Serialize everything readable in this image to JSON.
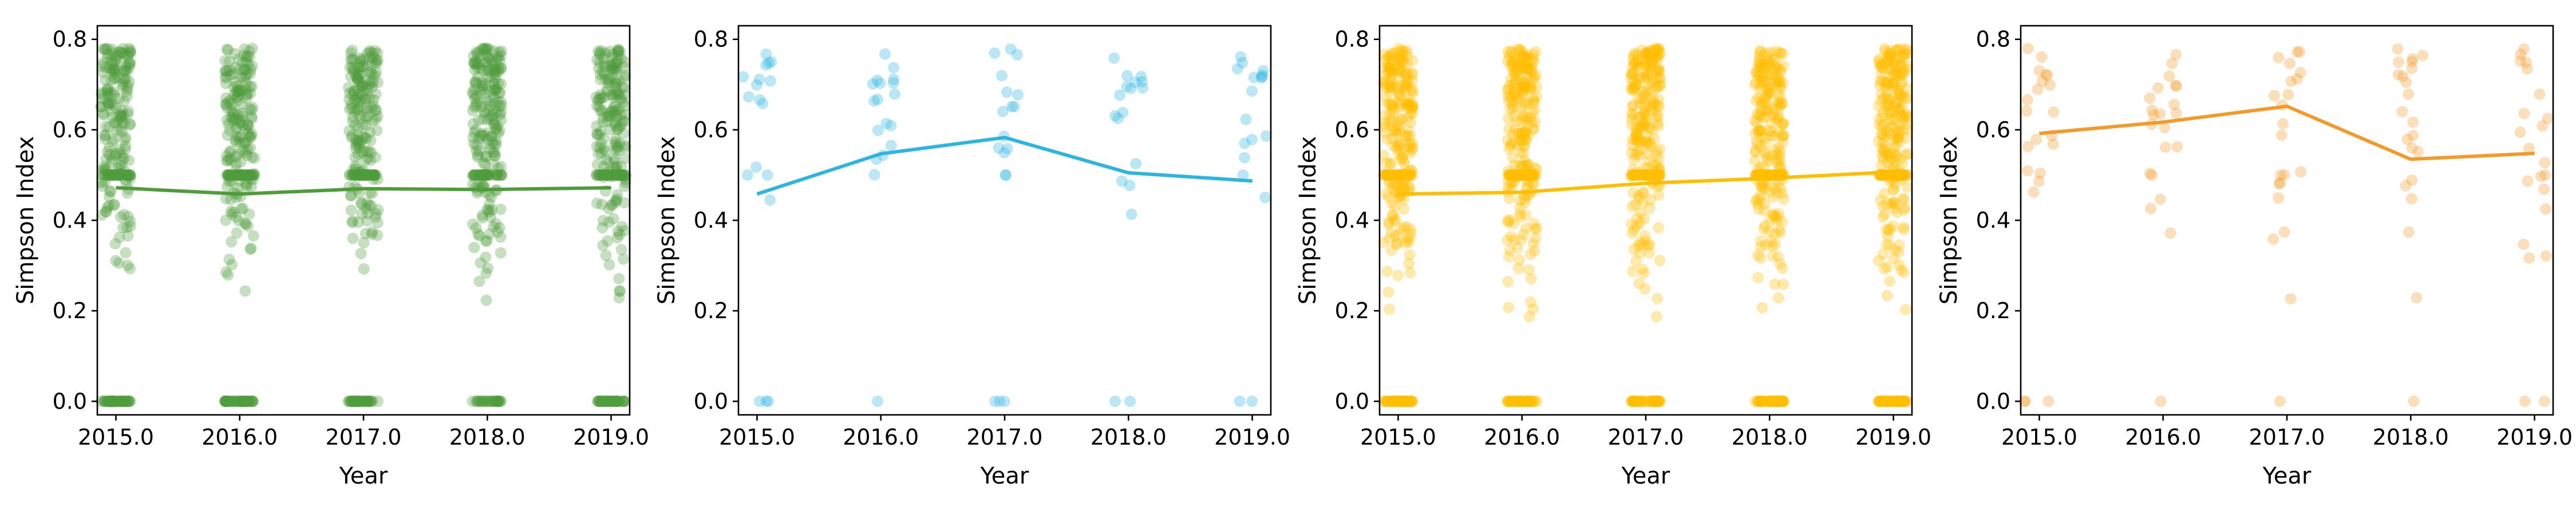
{
  "chart_data": [
    {
      "type": "scatter",
      "xlabel": "Year",
      "ylabel": "Simpson Index",
      "xticks": [
        "2015.0",
        "2016.0",
        "2017.0",
        "2018.0",
        "2019.0"
      ],
      "yticks": [
        "0.0",
        "0.2",
        "0.4",
        "0.6",
        "0.8"
      ],
      "x": [
        2015,
        2016,
        2017,
        2018,
        2019
      ],
      "xlim": [
        2014.85,
        2019.15
      ],
      "ylim": [
        -0.03,
        0.83
      ],
      "color": "#4f9d3a",
      "mean_line": [
        0.472,
        0.458,
        0.47,
        0.468,
        0.472
      ],
      "points_per_year": 260,
      "zero_fraction": 0.16,
      "half_fraction": 0.14,
      "spread": [
        0.2,
        0.78
      ]
    },
    {
      "type": "scatter",
      "xlabel": "Year",
      "ylabel": "Simpson Index",
      "xticks": [
        "2015.0",
        "2016.0",
        "2017.0",
        "2018.0",
        "2019.0"
      ],
      "yticks": [
        "0.0",
        "0.2",
        "0.4",
        "0.6",
        "0.8"
      ],
      "x": [
        2015,
        2016,
        2017,
        2018,
        2019
      ],
      "xlim": [
        2014.85,
        2019.15
      ],
      "ylim": [
        -0.03,
        0.83
      ],
      "color": "#2bb5e0",
      "mean_line": [
        0.458,
        0.547,
        0.583,
        0.505,
        0.487
      ],
      "points_per_year": 18,
      "zero_fraction": 0.15,
      "half_fraction": 0.1,
      "spread": [
        0.34,
        0.78
      ]
    },
    {
      "type": "scatter",
      "xlabel": "Year",
      "ylabel": "Simpson Index",
      "xticks": [
        "2015.0",
        "2016.0",
        "2017.0",
        "2018.0",
        "2019.0"
      ],
      "yticks": [
        "0.0",
        "0.2",
        "0.4",
        "0.6",
        "0.8"
      ],
      "x": [
        2015,
        2016,
        2017,
        2018,
        2019
      ],
      "xlim": [
        2014.85,
        2019.15
      ],
      "ylim": [
        -0.03,
        0.83
      ],
      "color": "#ffbf00",
      "mean_line": [
        0.458,
        0.462,
        0.482,
        0.493,
        0.507
      ],
      "points_per_year": 300,
      "zero_fraction": 0.16,
      "half_fraction": 0.14,
      "spread": [
        0.14,
        0.78
      ]
    },
    {
      "type": "scatter",
      "xlabel": "Year",
      "ylabel": "Simpson Index",
      "xticks": [
        "2015.0",
        "2016.0",
        "2017.0",
        "2018.0",
        "2019.0"
      ],
      "yticks": [
        "0.0",
        "0.2",
        "0.4",
        "0.6",
        "0.8"
      ],
      "x": [
        2015,
        2016,
        2017,
        2018,
        2019
      ],
      "xlim": [
        2014.85,
        2019.15
      ],
      "ylim": [
        -0.03,
        0.83
      ],
      "color": "#f39a28",
      "mean_line": [
        0.592,
        0.617,
        0.652,
        0.535,
        0.548
      ],
      "points_per_year": 22,
      "zero_fraction": 0.12,
      "half_fraction": 0.08,
      "spread": [
        0.16,
        0.78
      ]
    }
  ]
}
